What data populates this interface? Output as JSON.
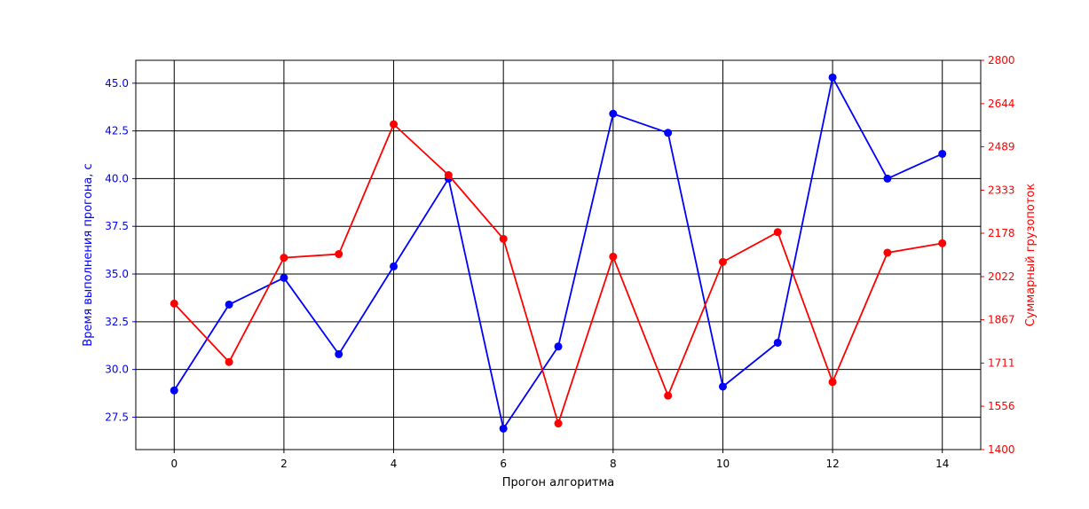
{
  "chart_data": {
    "type": "line",
    "title": "",
    "xlabel": "Прогон алгоритма",
    "ylabel_left": "Время выполнения прогона, с",
    "ylabel_right": "Суммарный грузопоток",
    "xlim": [
      -0.7,
      14.7
    ],
    "ylim_left": [
      25.8,
      46.2
    ],
    "ylim_right": [
      1400,
      2800
    ],
    "x_ticks": [
      0,
      2,
      4,
      6,
      8,
      10,
      12,
      14
    ],
    "y_ticks_left": [
      "27.5",
      "30.0",
      "32.5",
      "35.0",
      "37.5",
      "40.0",
      "42.5",
      "45.0"
    ],
    "y_ticks_right": [
      "1400",
      "1556",
      "1711",
      "1867",
      "2022",
      "2178",
      "2333",
      "2489",
      "2644",
      "2800"
    ],
    "grid": true,
    "x": [
      0,
      1,
      2,
      3,
      4,
      5,
      6,
      7,
      8,
      9,
      10,
      11,
      12,
      13,
      14
    ],
    "series": [
      {
        "axis": "left",
        "color": "#0000ff",
        "values": [
          28.9,
          33.4,
          34.8,
          30.8,
          35.4,
          40.0,
          26.9,
          31.2,
          43.4,
          42.4,
          29.1,
          31.4,
          45.3,
          40.0,
          41.3
        ]
      },
      {
        "axis": "right",
        "color": "#ff0000",
        "values": [
          1925,
          1715,
          2090,
          2103,
          2570,
          2387,
          2158,
          1494,
          2094,
          1594,
          2075,
          2182,
          1643,
          2108,
          2142
        ]
      }
    ]
  }
}
